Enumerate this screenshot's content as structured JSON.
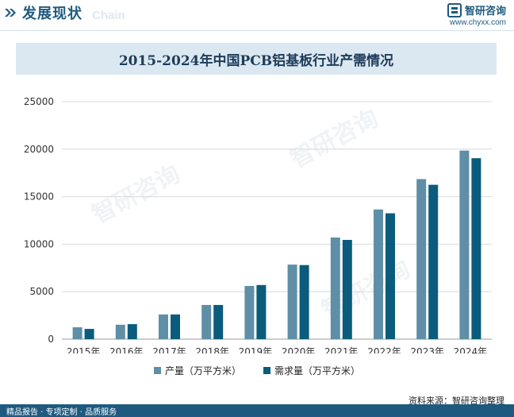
{
  "header": {
    "title": "发展现状",
    "subtitle": "Chain",
    "brand_name": "智研咨询",
    "brand_url": "www.chyxx.com"
  },
  "watermark_text": "智研咨询",
  "footer": {
    "services": "精品报告 · 专项定制 · 品质服务",
    "source": "资料来源：智研咨询整理"
  },
  "colors": {
    "series_1": "#5e8fa6",
    "series_2": "#0b5c7c",
    "header_blue": "#1e5a80",
    "title_band": "#dbe8f1",
    "grid": "#d9d9d9"
  },
  "chart_data": {
    "type": "bar",
    "title": "2015-2024年中国PCB铝基板行业产需情况",
    "categories": [
      "2015年",
      "2016年",
      "2017年",
      "2018年",
      "2019年",
      "2020年",
      "2021年",
      "2022年",
      "2023年",
      "2024年"
    ],
    "series": [
      {
        "name": "产量（万平方米）",
        "values": [
          1250,
          1520,
          2600,
          3600,
          5600,
          7850,
          10700,
          13650,
          16850,
          19850
        ]
      },
      {
        "name": "需求量（万平方米）",
        "values": [
          1080,
          1580,
          2600,
          3600,
          5700,
          7800,
          10450,
          13250,
          16250,
          19050
        ]
      }
    ],
    "ylim": [
      0,
      25000
    ],
    "yticks": [
      0,
      5000,
      10000,
      15000,
      20000,
      25000
    ],
    "xlabel": "",
    "ylabel": "",
    "grid": true,
    "legend_position": "bottom"
  }
}
